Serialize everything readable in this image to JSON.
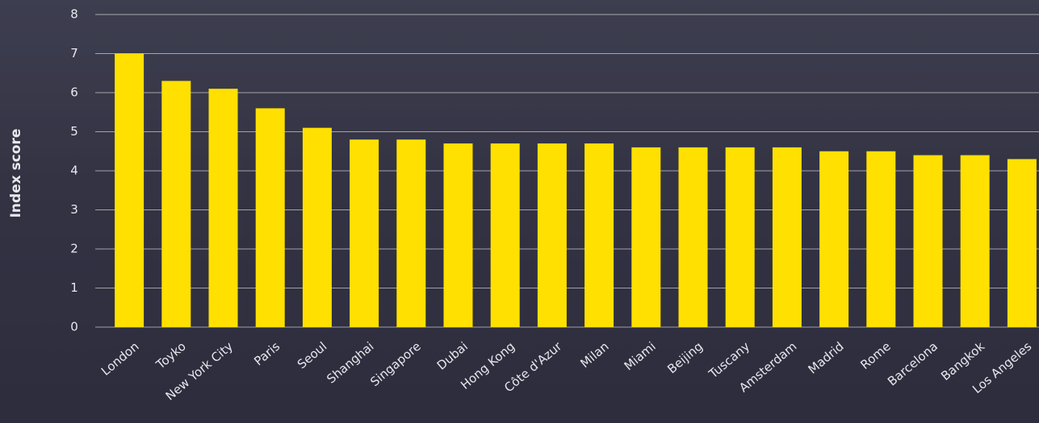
{
  "chart_data": {
    "type": "bar",
    "y_label": "Index score",
    "categories": [
      "London",
      "Toyko",
      "New York City",
      "Paris",
      "Seoul",
      "Shanghai",
      "Singapore",
      "Dubai",
      "Hong Kong",
      "Côte d'Azur",
      "Milan",
      "Miami",
      "Beijing",
      "Tuscany",
      "Amsterdam",
      "Madrid",
      "Rome",
      "Barcelona",
      "Bangkok",
      "Los Angeles"
    ],
    "values": [
      7.0,
      6.3,
      6.1,
      5.6,
      5.1,
      4.8,
      4.8,
      4.7,
      4.7,
      4.7,
      4.7,
      4.6,
      4.6,
      4.6,
      4.6,
      4.5,
      4.5,
      4.4,
      4.4,
      4.3
    ],
    "color": "#ffe000",
    "ylim": [
      0,
      8
    ],
    "yticks": [
      0,
      1,
      2,
      3,
      4,
      5,
      6,
      7,
      8
    ],
    "grid": true
  }
}
